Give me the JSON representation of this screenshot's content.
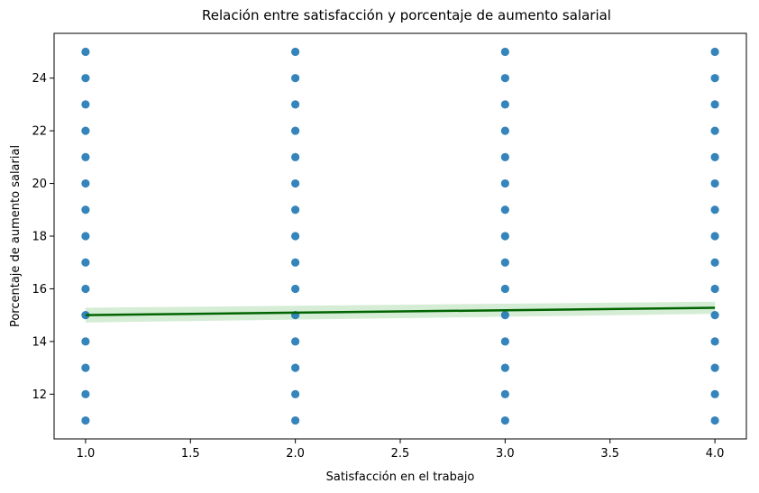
{
  "chart_data": {
    "type": "scatter",
    "title": "Relación entre satisfacción y porcentaje de aumento salarial",
    "xlabel": "Satisfacción en el trabajo",
    "ylabel": "Porcentaje de aumento salarial",
    "xlim": [
      0.85,
      4.15
    ],
    "ylim": [
      10.3,
      25.7
    ],
    "xticks": [
      1.0,
      1.5,
      2.0,
      2.5,
      3.0,
      3.5,
      4.0
    ],
    "xtick_labels": [
      "1.0",
      "1.5",
      "2.0",
      "2.5",
      "3.0",
      "3.5",
      "4.0"
    ],
    "yticks": [
      12,
      14,
      16,
      18,
      20,
      22,
      24
    ],
    "ytick_labels": [
      "12",
      "14",
      "16",
      "18",
      "20",
      "22",
      "24"
    ],
    "grid": false,
    "points": [
      {
        "x": 1,
        "y": 11
      },
      {
        "x": 1,
        "y": 12
      },
      {
        "x": 1,
        "y": 13
      },
      {
        "x": 1,
        "y": 14
      },
      {
        "x": 1,
        "y": 15
      },
      {
        "x": 1,
        "y": 16
      },
      {
        "x": 1,
        "y": 17
      },
      {
        "x": 1,
        "y": 18
      },
      {
        "x": 1,
        "y": 19
      },
      {
        "x": 1,
        "y": 20
      },
      {
        "x": 1,
        "y": 21
      },
      {
        "x": 1,
        "y": 22
      },
      {
        "x": 1,
        "y": 23
      },
      {
        "x": 1,
        "y": 24
      },
      {
        "x": 1,
        "y": 25
      },
      {
        "x": 2,
        "y": 11
      },
      {
        "x": 2,
        "y": 12
      },
      {
        "x": 2,
        "y": 13
      },
      {
        "x": 2,
        "y": 14
      },
      {
        "x": 2,
        "y": 15
      },
      {
        "x": 2,
        "y": 16
      },
      {
        "x": 2,
        "y": 17
      },
      {
        "x": 2,
        "y": 18
      },
      {
        "x": 2,
        "y": 19
      },
      {
        "x": 2,
        "y": 20
      },
      {
        "x": 2,
        "y": 21
      },
      {
        "x": 2,
        "y": 22
      },
      {
        "x": 2,
        "y": 23
      },
      {
        "x": 2,
        "y": 24
      },
      {
        "x": 2,
        "y": 25
      },
      {
        "x": 3,
        "y": 11
      },
      {
        "x": 3,
        "y": 12
      },
      {
        "x": 3,
        "y": 13
      },
      {
        "x": 3,
        "y": 14
      },
      {
        "x": 3,
        "y": 15
      },
      {
        "x": 3,
        "y": 16
      },
      {
        "x": 3,
        "y": 17
      },
      {
        "x": 3,
        "y": 18
      },
      {
        "x": 3,
        "y": 19
      },
      {
        "x": 3,
        "y": 20
      },
      {
        "x": 3,
        "y": 21
      },
      {
        "x": 3,
        "y": 22
      },
      {
        "x": 3,
        "y": 23
      },
      {
        "x": 3,
        "y": 24
      },
      {
        "x": 3,
        "y": 25
      },
      {
        "x": 4,
        "y": 11
      },
      {
        "x": 4,
        "y": 12
      },
      {
        "x": 4,
        "y": 13
      },
      {
        "x": 4,
        "y": 14
      },
      {
        "x": 4,
        "y": 15
      },
      {
        "x": 4,
        "y": 16
      },
      {
        "x": 4,
        "y": 17
      },
      {
        "x": 4,
        "y": 18
      },
      {
        "x": 4,
        "y": 19
      },
      {
        "x": 4,
        "y": 20
      },
      {
        "x": 4,
        "y": 21
      },
      {
        "x": 4,
        "y": 22
      },
      {
        "x": 4,
        "y": 23
      },
      {
        "x": 4,
        "y": 24
      },
      {
        "x": 4,
        "y": 25
      }
    ],
    "regression": {
      "x": [
        1.0,
        4.0
      ],
      "y": [
        15.0,
        15.28
      ],
      "ci_lower": [
        14.72,
        15.05
      ],
      "ci_upper": [
        15.28,
        15.51
      ]
    },
    "colors": {
      "points": "#1f77b4",
      "line": "#006400",
      "ci_band": "#2ca02c"
    }
  }
}
